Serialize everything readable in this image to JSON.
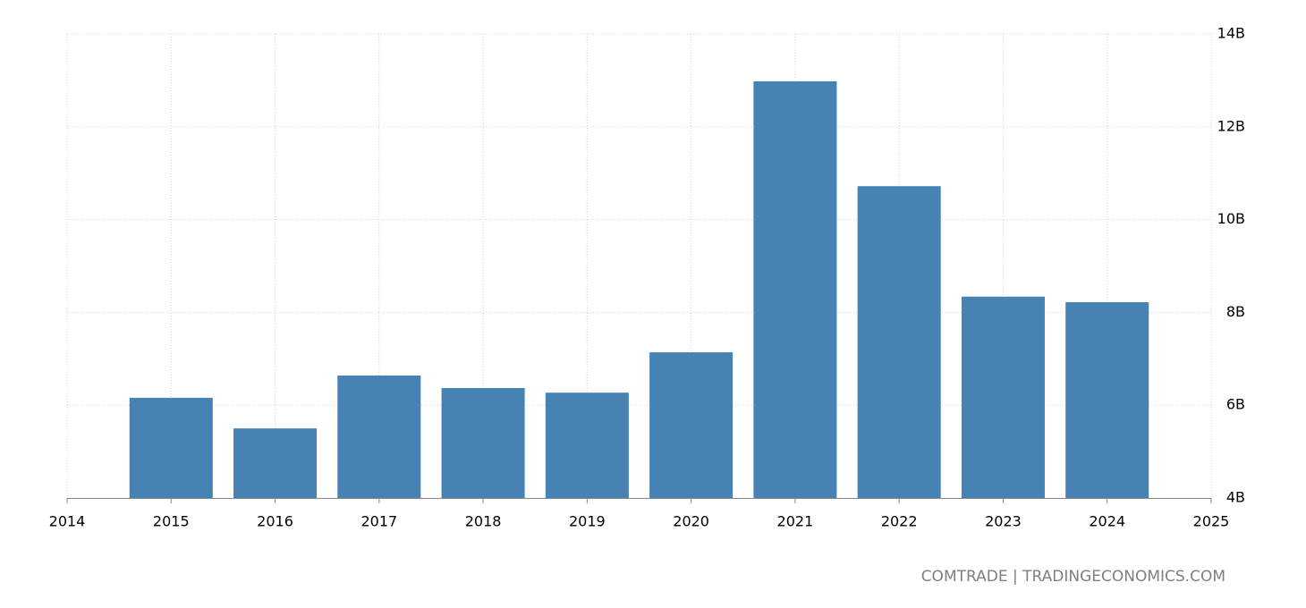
{
  "chart_data": {
    "type": "bar",
    "source": "COMTRADE | TRADINGECONOMICS.COM",
    "x": [
      2015,
      2016,
      2017,
      2018,
      2019,
      2020,
      2021,
      2022,
      2023,
      2024
    ],
    "values": [
      6.16,
      5.5,
      6.64,
      6.37,
      6.27,
      7.14,
      12.98,
      10.72,
      8.34,
      8.22
    ],
    "color": "#4682b4",
    "xlim": [
      2014,
      2025
    ],
    "xticks": [
      2014,
      2015,
      2016,
      2017,
      2018,
      2019,
      2020,
      2021,
      2022,
      2023,
      2024,
      2025
    ],
    "ylim": [
      4,
      14
    ],
    "yticks": [
      {
        "value": 4,
        "label": "4B"
      },
      {
        "value": 6,
        "label": "6B"
      },
      {
        "value": 8,
        "label": "8B"
      },
      {
        "value": 10,
        "label": "10B"
      },
      {
        "value": 12,
        "label": "12B"
      },
      {
        "value": 14,
        "label": "14B"
      }
    ],
    "grid": true,
    "y_axis_side": "right"
  }
}
